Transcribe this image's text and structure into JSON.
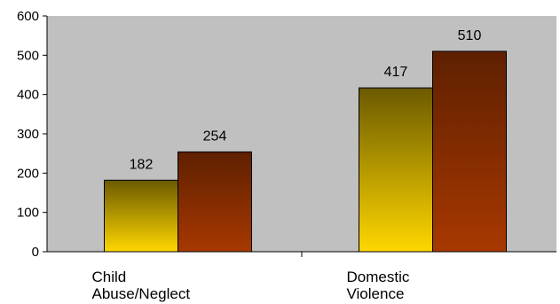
{
  "chart_data": {
    "type": "bar",
    "title": "",
    "xlabel": "",
    "ylabel": "",
    "categories": [
      [
        "Child",
        "Abuse/Neglect"
      ],
      [
        "Domestic",
        "Violence"
      ]
    ],
    "series": [
      {
        "values": [
          182,
          417
        ],
        "color_top": "#6b5a00",
        "color_bottom": "#ffd700"
      },
      {
        "values": [
          254,
          510
        ],
        "color_top": "#5e2000",
        "color_bottom": "#a83800"
      }
    ],
    "ylim": [
      0,
      600
    ],
    "yticks": [
      0,
      100,
      200,
      300,
      400,
      500,
      600
    ],
    "plot_background": "#c0c0c0",
    "grid": false,
    "legend": "none"
  }
}
